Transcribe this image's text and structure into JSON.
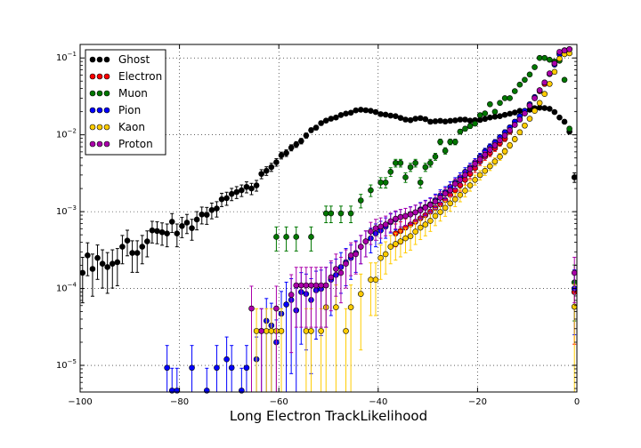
{
  "chart_data": {
    "type": "scatter",
    "title": "",
    "xlabel": "Long Electron TrackLikelihood",
    "ylabel": "",
    "xlim": [
      -100,
      0
    ],
    "ylim": [
      4.5e-06,
      0.15
    ],
    "yscale": "log",
    "x_ticks": [
      "-100",
      "-80",
      "-60",
      "-40",
      "-20",
      "0"
    ],
    "y_tick_exponents": [
      "-5",
      "-4",
      "-3",
      "-2",
      "-1"
    ],
    "y_tick_base": "10",
    "grid": true,
    "legend_position": "top-left",
    "series": [
      {
        "name": "Ghost",
        "color": "#000000",
        "x": [
          -99.5,
          -98.5,
          -97.5,
          -96.5,
          -95.5,
          -94.5,
          -93.5,
          -92.5,
          -91.5,
          -90.5,
          -89.5,
          -88.5,
          -87.5,
          -86.5,
          -85.5,
          -84.5,
          -83.5,
          -82.5,
          -81.5,
          -80.5,
          -79.5,
          -78.5,
          -77.5,
          -76.5,
          -75.5,
          -74.5,
          -73.5,
          -72.5,
          -71.5,
          -70.5,
          -69.5,
          -68.5,
          -67.5,
          -66.5,
          -65.5,
          -64.5,
          -63.5,
          -62.5,
          -61.5,
          -60.5,
          -59.5,
          -58.5,
          -57.5,
          -56.5,
          -55.5,
          -54.5,
          -53.5,
          -52.5,
          -51.5,
          -50.5,
          -49.5,
          -48.5,
          -47.5,
          -46.5,
          -45.5,
          -44.5,
          -43.5,
          -42.5,
          -41.5,
          -40.5,
          -39.5,
          -38.5,
          -37.5,
          -36.5,
          -35.5,
          -34.5,
          -33.5,
          -32.5,
          -31.5,
          -30.5,
          -29.5,
          -28.5,
          -27.5,
          -26.5,
          -25.5,
          -24.5,
          -23.5,
          -22.5,
          -21.5,
          -20.5,
          -19.5,
          -18.5,
          -17.5,
          -16.5,
          -15.5,
          -14.5,
          -13.5,
          -12.5,
          -11.5,
          -10.5,
          -9.5,
          -8.5,
          -7.5,
          -6.5,
          -5.5,
          -4.5,
          -3.5,
          -2.5,
          -1.5,
          -0.5
        ],
        "y": [
          0.00016,
          0.00027,
          0.00018,
          0.00025,
          0.00021,
          0.00019,
          0.00021,
          0.00022,
          0.00035,
          0.00042,
          0.00029,
          0.00029,
          0.00035,
          0.00041,
          0.00057,
          0.00056,
          0.00054,
          0.00052,
          0.00074,
          0.00052,
          0.00065,
          0.00072,
          0.00061,
          0.00079,
          0.00092,
          0.00091,
          0.00105,
          0.0011,
          0.00145,
          0.0015,
          0.0017,
          0.0018,
          0.0019,
          0.0021,
          0.002,
          0.0022,
          0.0031,
          0.0034,
          0.0038,
          0.0044,
          0.0054,
          0.0058,
          0.0068,
          0.0075,
          0.0083,
          0.0098,
          0.0115,
          0.0124,
          0.0142,
          0.0153,
          0.0162,
          0.0168,
          0.0181,
          0.0189,
          0.0194,
          0.0208,
          0.0212,
          0.0209,
          0.0205,
          0.0198,
          0.0186,
          0.0183,
          0.0178,
          0.0175,
          0.0166,
          0.0158,
          0.0155,
          0.0162,
          0.0165,
          0.016,
          0.0148,
          0.015,
          0.0152,
          0.0149,
          0.0152,
          0.0154,
          0.0158,
          0.0158,
          0.0153,
          0.0155,
          0.0156,
          0.0161,
          0.0168,
          0.0172,
          0.0175,
          0.0182,
          0.0188,
          0.0195,
          0.0205,
          0.0205,
          0.0212,
          0.0222,
          0.0225,
          0.0223,
          0.0218,
          0.0198,
          0.0168,
          0.0148,
          0.011,
          0.0028
        ]
      },
      {
        "name": "Electron",
        "color": "#ff0000",
        "x": [
          -36.5,
          -35.5,
          -34.5,
          -33.5,
          -32.5,
          -31.5,
          -30.5,
          -29.5,
          -28.5,
          -27.5,
          -26.5,
          -25.5,
          -24.5,
          -23.5,
          -22.5,
          -21.5,
          -20.5,
          -19.5,
          -18.5,
          -17.5,
          -16.5,
          -15.5,
          -14.5,
          -13.5,
          -12.5,
          -11.5,
          -10.5,
          -9.5,
          -8.5,
          -7.5,
          -6.5,
          -5.5,
          -4.5,
          -3.5,
          -2.5,
          -1.5,
          -0.5
        ],
        "y": [
          0.00052,
          0.00056,
          0.00062,
          0.00068,
          0.00074,
          0.00082,
          0.0009,
          0.001,
          0.00112,
          0.00125,
          0.00142,
          0.00165,
          0.0019,
          0.0022,
          0.0026,
          0.0031,
          0.0037,
          0.0045,
          0.0052,
          0.0058,
          0.0067,
          0.0078,
          0.0089,
          0.011,
          0.0135,
          0.016,
          0.019,
          0.024,
          0.03,
          0.037,
          0.046,
          0.062,
          0.088,
          0.115,
          0.125,
          0.13,
          9e-05
        ]
      },
      {
        "name": "Muon",
        "color": "#007700",
        "x": [
          -60.5,
          -58.5,
          -56.5,
          -53.5,
          -50.5,
          -49.5,
          -47.5,
          -45.5,
          -43.5,
          -41.5,
          -39.5,
          -38.5,
          -37.5,
          -36.5,
          -35.5,
          -34.5,
          -33.5,
          -32.5,
          -31.5,
          -30.5,
          -29.5,
          -28.5,
          -27.5,
          -26.5,
          -25.5,
          -24.5,
          -23.5,
          -22.5,
          -21.5,
          -20.5,
          -19.5,
          -18.5,
          -17.5,
          -16.5,
          -15.5,
          -14.5,
          -13.5,
          -12.5,
          -11.5,
          -10.5,
          -9.5,
          -8.5,
          -7.5,
          -6.5,
          -5.5,
          -4.5,
          -3.5,
          -2.5,
          -1.5,
          -0.5
        ],
        "y": [
          0.00047,
          0.00047,
          0.00047,
          0.00047,
          0.00095,
          0.00095,
          0.00095,
          0.00095,
          0.0014,
          0.0019,
          0.0024,
          0.0024,
          0.0033,
          0.0043,
          0.0043,
          0.0028,
          0.0038,
          0.0043,
          0.0024,
          0.0038,
          0.0043,
          0.0052,
          0.0081,
          0.0062,
          0.0081,
          0.0081,
          0.011,
          0.012,
          0.013,
          0.014,
          0.018,
          0.019,
          0.025,
          0.02,
          0.026,
          0.03,
          0.03,
          0.037,
          0.045,
          0.052,
          0.061,
          0.076,
          0.1,
          0.1,
          0.095,
          0.09,
          0.092,
          0.052,
          0.012,
          0.00012
        ]
      },
      {
        "name": "Pion",
        "color": "#0000ff",
        "x": [
          -82.5,
          -81.5,
          -80.5,
          -77.5,
          -74.5,
          -72.5,
          -70.5,
          -69.5,
          -67.5,
          -66.5,
          -64.5,
          -63.5,
          -62.5,
          -61.5,
          -60.5,
          -59.5,
          -58.5,
          -57.5,
          -56.5,
          -55.5,
          -54.5,
          -53.5,
          -52.5,
          -51.5,
          -50.5,
          -49.5,
          -48.5,
          -47.5,
          -46.5,
          -45.5,
          -44.5,
          -43.5,
          -42.5,
          -41.5,
          -40.5,
          -39.5,
          -38.5,
          -37.5,
          -36.5,
          -35.5,
          -34.5,
          -33.5,
          -32.5,
          -31.5,
          -30.5,
          -29.5,
          -28.5,
          -27.5,
          -26.5,
          -25.5,
          -24.5,
          -23.5,
          -22.5,
          -21.5,
          -20.5,
          -19.5,
          -18.5,
          -17.5,
          -16.5,
          -15.5,
          -14.5,
          -13.5,
          -12.5,
          -11.5,
          -10.5,
          -9.5,
          -8.5,
          -7.5,
          -6.5,
          -5.5,
          -4.5,
          -3.5,
          -2.5,
          -1.5,
          -0.5
        ],
        "y": [
          9.3e-06,
          4.7e-06,
          4.7e-06,
          9.3e-06,
          4.7e-06,
          9.3e-06,
          1.2e-05,
          9.3e-06,
          4.7e-06,
          9.3e-06,
          1.2e-05,
          2.8e-05,
          3.8e-05,
          3.3e-05,
          2e-05,
          4.7e-05,
          6.2e-05,
          7.1e-05,
          5.2e-05,
          9e-05,
          8.5e-05,
          7.1e-05,
          9.5e-05,
          9.9e-05,
          0.00011,
          0.00013,
          0.00015,
          0.00019,
          0.00022,
          0.00025,
          0.00029,
          0.00035,
          0.00041,
          0.00045,
          0.00052,
          0.00057,
          0.00064,
          0.00073,
          0.00079,
          0.00085,
          0.00088,
          0.00093,
          0.00098,
          0.00107,
          0.00115,
          0.00125,
          0.00141,
          0.00162,
          0.0018,
          0.0021,
          0.0024,
          0.0028,
          0.0033,
          0.0038,
          0.0044,
          0.0052,
          0.0061,
          0.007,
          0.008,
          0.0093,
          0.0108,
          0.0125,
          0.0148,
          0.0175,
          0.0205,
          0.025,
          0.031,
          0.038,
          0.048,
          0.062,
          0.082,
          0.112,
          0.126,
          0.13,
          0.0001
        ]
      },
      {
        "name": "Kaon",
        "color": "#ffcc00",
        "x": [
          -64.5,
          -62.5,
          -61.5,
          -60.5,
          -59.5,
          -54.5,
          -53.5,
          -51.5,
          -50.5,
          -48.5,
          -46.5,
          -45.5,
          -43.5,
          -41.5,
          -40.5,
          -39.5,
          -38.5,
          -37.5,
          -36.5,
          -35.5,
          -34.5,
          -33.5,
          -32.5,
          -31.5,
          -30.5,
          -29.5,
          -28.5,
          -27.5,
          -26.5,
          -25.5,
          -24.5,
          -23.5,
          -22.5,
          -21.5,
          -20.5,
          -19.5,
          -18.5,
          -17.5,
          -16.5,
          -15.5,
          -14.5,
          -13.5,
          -12.5,
          -11.5,
          -10.5,
          -9.5,
          -8.5,
          -7.5,
          -6.5,
          -5.5,
          -4.5,
          -3.5,
          -2.5,
          -1.5,
          -0.5
        ],
        "y": [
          2.8e-05,
          2.8e-05,
          2.8e-05,
          2.8e-05,
          2.8e-05,
          2.8e-05,
          2.8e-05,
          2.8e-05,
          5.7e-05,
          5.7e-05,
          2.8e-05,
          5.7e-05,
          8.5e-05,
          0.00013,
          0.00013,
          0.00025,
          0.00028,
          0.00035,
          0.00038,
          0.00041,
          0.00045,
          0.00048,
          0.00055,
          0.00062,
          0.00068,
          0.00076,
          0.00088,
          0.00099,
          0.00112,
          0.00128,
          0.00145,
          0.00165,
          0.00188,
          0.0022,
          0.0026,
          0.003,
          0.0034,
          0.0039,
          0.0045,
          0.0052,
          0.0061,
          0.0073,
          0.0088,
          0.0108,
          0.0132,
          0.0162,
          0.0205,
          0.026,
          0.034,
          0.046,
          0.066,
          0.098,
          0.112,
          0.115,
          5.8e-05
        ]
      },
      {
        "name": "Proton",
        "color": "#aa00aa",
        "x": [
          -65.5,
          -63.5,
          -60.5,
          -57.5,
          -56.5,
          -55.5,
          -54.5,
          -53.5,
          -52.5,
          -51.5,
          -50.5,
          -49.5,
          -48.5,
          -47.5,
          -46.5,
          -45.5,
          -44.5,
          -43.5,
          -42.5,
          -41.5,
          -40.5,
          -39.5,
          -38.5,
          -37.5,
          -36.5,
          -35.5,
          -34.5,
          -33.5,
          -32.5,
          -31.5,
          -30.5,
          -29.5,
          -28.5,
          -27.5,
          -26.5,
          -25.5,
          -24.5,
          -23.5,
          -22.5,
          -21.5,
          -20.5,
          -19.5,
          -18.5,
          -17.5,
          -16.5,
          -15.5,
          -14.5,
          -13.5,
          -12.5,
          -11.5,
          -10.5,
          -9.5,
          -8.5,
          -7.5,
          -6.5,
          -5.5,
          -4.5,
          -3.5,
          -2.5,
          -1.5,
          -0.5
        ],
        "y": [
          5.5e-05,
          2.8e-05,
          5.5e-05,
          8.3e-05,
          0.00011,
          0.00011,
          0.00011,
          0.00011,
          0.00011,
          0.00011,
          0.00011,
          0.00014,
          0.00018,
          0.00016,
          0.00021,
          0.00027,
          0.00028,
          0.00035,
          0.00041,
          0.00055,
          0.00061,
          0.00064,
          0.00068,
          0.00075,
          0.00081,
          0.00085,
          0.00088,
          0.00092,
          0.00098,
          0.00104,
          0.00113,
          0.00122,
          0.00135,
          0.00152,
          0.00172,
          0.0019,
          0.0023,
          0.0026,
          0.003,
          0.0036,
          0.0042,
          0.0048,
          0.0055,
          0.0064,
          0.0073,
          0.0085,
          0.0098,
          0.0115,
          0.0135,
          0.0158,
          0.019,
          0.024,
          0.03,
          0.038,
          0.048,
          0.063,
          0.085,
          0.12,
          0.125,
          0.13,
          0.00016
        ]
      }
    ]
  }
}
